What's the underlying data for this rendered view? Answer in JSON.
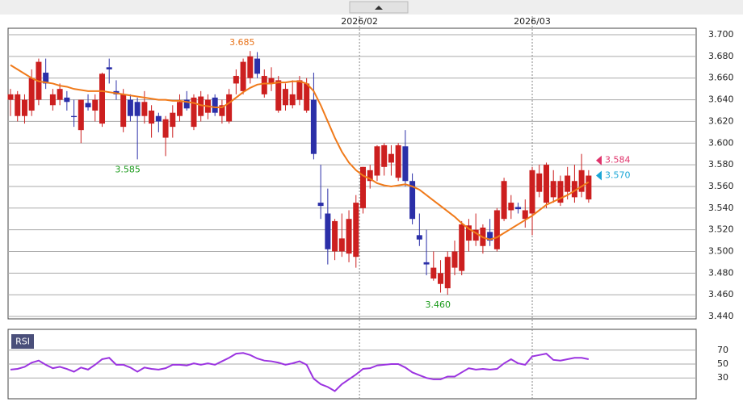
{
  "chart_data": [
    {
      "type": "candlestick",
      "up_color": "#cc1f1f",
      "down_color": "#2b2fa8",
      "candles": [
        [
          3.64,
          3.65,
          3.625,
          3.645
        ],
        [
          3.625,
          3.648,
          3.62,
          3.645
        ],
        [
          3.625,
          3.645,
          3.618,
          3.64
        ],
        [
          3.63,
          3.668,
          3.625,
          3.66
        ],
        [
          3.64,
          3.678,
          3.635,
          3.675
        ],
        [
          3.665,
          3.678,
          3.65,
          3.655
        ],
        [
          3.635,
          3.65,
          3.63,
          3.645
        ],
        [
          3.64,
          3.655,
          3.635,
          3.65
        ],
        [
          3.642,
          3.648,
          3.63,
          3.638
        ],
        [
          3.625,
          3.64,
          3.615,
          3.624
        ],
        [
          3.612,
          3.64,
          3.6,
          3.64
        ],
        [
          3.637,
          3.645,
          3.63,
          3.633
        ],
        [
          3.63,
          3.645,
          3.62,
          3.64
        ],
        [
          3.618,
          3.665,
          3.615,
          3.664
        ],
        [
          3.67,
          3.678,
          3.655,
          3.668
        ],
        [
          3.648,
          3.658,
          3.64,
          3.645
        ],
        [
          3.615,
          3.65,
          3.61,
          3.645
        ],
        [
          3.64,
          3.645,
          3.62,
          3.625
        ],
        [
          3.638,
          3.642,
          3.585,
          3.625
        ],
        [
          3.625,
          3.648,
          3.618,
          3.638
        ],
        [
          3.618,
          3.635,
          3.605,
          3.63
        ],
        [
          3.625,
          3.628,
          3.61,
          3.62
        ],
        [
          3.605,
          3.625,
          3.588,
          3.622
        ],
        [
          3.615,
          3.635,
          3.605,
          3.628
        ],
        [
          3.625,
          3.645,
          3.62,
          3.638
        ],
        [
          3.64,
          3.648,
          3.63,
          3.632
        ],
        [
          3.615,
          3.645,
          3.612,
          3.642
        ],
        [
          3.625,
          3.648,
          3.62,
          3.643
        ],
        [
          3.628,
          3.645,
          3.622,
          3.64
        ],
        [
          3.642,
          3.645,
          3.625,
          3.628
        ],
        [
          3.625,
          3.64,
          3.618,
          3.635
        ],
        [
          3.62,
          3.65,
          3.618,
          3.645
        ],
        [
          3.655,
          3.668,
          3.645,
          3.662
        ],
        [
          3.648,
          3.678,
          3.645,
          3.675
        ],
        [
          3.66,
          3.685,
          3.655,
          3.68
        ],
        [
          3.678,
          3.684,
          3.66,
          3.664
        ],
        [
          3.645,
          3.668,
          3.642,
          3.662
        ],
        [
          3.655,
          3.67,
          3.648,
          3.66
        ],
        [
          3.63,
          3.662,
          3.628,
          3.658
        ],
        [
          3.635,
          3.655,
          3.63,
          3.65
        ],
        [
          3.635,
          3.658,
          3.632,
          3.645
        ],
        [
          3.64,
          3.662,
          3.635,
          3.658
        ],
        [
          3.63,
          3.66,
          3.628,
          3.655
        ],
        [
          3.64,
          3.665,
          3.585,
          3.59
        ],
        [
          3.545,
          3.58,
          3.53,
          3.542
        ],
        [
          3.535,
          3.558,
          3.488,
          3.502
        ],
        [
          3.5,
          3.53,
          3.492,
          3.528
        ],
        [
          3.5,
          3.535,
          3.495,
          3.512
        ],
        [
          3.498,
          3.538,
          3.49,
          3.53
        ],
        [
          3.495,
          3.552,
          3.485,
          3.545
        ],
        [
          3.54,
          3.578,
          3.535,
          3.578
        ],
        [
          3.565,
          3.58,
          3.558,
          3.575
        ],
        [
          3.57,
          3.598,
          3.565,
          3.597
        ],
        [
          3.578,
          3.6,
          3.57,
          3.598
        ],
        [
          3.582,
          3.598,
          3.57,
          3.59
        ],
        [
          3.568,
          3.6,
          3.565,
          3.598
        ],
        [
          3.597,
          3.612,
          3.56,
          3.565
        ],
        [
          3.565,
          3.572,
          3.525,
          3.53
        ],
        [
          3.515,
          3.535,
          3.505,
          3.511
        ],
        [
          3.49,
          3.52,
          3.478,
          3.488
        ],
        [
          3.475,
          3.5,
          3.473,
          3.485
        ],
        [
          3.47,
          3.492,
          3.462,
          3.48
        ],
        [
          3.466,
          3.5,
          3.46,
          3.495
        ],
        [
          3.485,
          3.51,
          3.478,
          3.5
        ],
        [
          3.482,
          3.528,
          3.478,
          3.525
        ],
        [
          3.51,
          3.53,
          3.5,
          3.524
        ],
        [
          3.51,
          3.535,
          3.505,
          3.52
        ],
        [
          3.505,
          3.525,
          3.498,
          3.522
        ],
        [
          3.518,
          3.53,
          3.505,
          3.51
        ],
        [
          3.502,
          3.54,
          3.5,
          3.538
        ],
        [
          3.53,
          3.568,
          3.528,
          3.565
        ],
        [
          3.538,
          3.552,
          3.53,
          3.545
        ],
        [
          3.541,
          3.545,
          3.535,
          3.539
        ],
        [
          3.53,
          3.548,
          3.522,
          3.538
        ],
        [
          3.535,
          3.578,
          3.515,
          3.575
        ],
        [
          3.555,
          3.58,
          3.55,
          3.572
        ],
        [
          3.545,
          3.582,
          3.54,
          3.58
        ],
        [
          3.55,
          3.575,
          3.545,
          3.565
        ],
        [
          3.545,
          3.57,
          3.542,
          3.565
        ],
        [
          3.555,
          3.578,
          3.548,
          3.57
        ],
        [
          3.55,
          3.58,
          3.545,
          3.565
        ],
        [
          3.555,
          3.59,
          3.55,
          3.575
        ],
        [
          3.548,
          3.575,
          3.545,
          3.57
        ]
      ],
      "series": [
        {
          "color": "#f07a1a",
          "values": [
            3.672,
            3.668,
            3.664,
            3.66,
            3.657,
            3.656,
            3.655,
            3.653,
            3.652,
            3.65,
            3.649,
            3.648,
            3.648,
            3.648,
            3.647,
            3.646,
            3.645,
            3.644,
            3.643,
            3.642,
            3.641,
            3.64,
            3.64,
            3.639,
            3.639,
            3.638,
            3.637,
            3.635,
            3.634,
            3.633,
            3.633,
            3.637,
            3.642,
            3.647,
            3.651,
            3.654,
            3.655,
            3.655,
            3.656,
            3.656,
            3.657,
            3.657,
            3.655,
            3.648,
            3.635,
            3.62,
            3.605,
            3.592,
            3.582,
            3.575,
            3.57,
            3.567,
            3.563,
            3.561,
            3.56,
            3.561,
            3.562,
            3.56,
            3.557,
            3.552,
            3.547,
            3.542,
            3.537,
            3.532,
            3.526,
            3.521,
            3.517,
            3.513,
            3.511,
            3.513,
            3.517,
            3.521,
            3.525,
            3.529,
            3.533,
            3.538,
            3.543,
            3.546,
            3.549,
            3.552,
            3.556,
            3.56,
            3.564
          ]
        }
      ],
      "high_labels": [
        {
          "value": 3.685,
          "label": "3.685",
          "color": "#e8731a"
        }
      ],
      "low_labels": [
        {
          "value": 3.585,
          "label": "3.585",
          "color": "#1a9a1a"
        },
        {
          "value": 3.46,
          "label": "3.460",
          "color": "#1a9a1a"
        }
      ],
      "price_markers": [
        {
          "value": 3.584,
          "label": "3.584",
          "color": "#e0336b"
        },
        {
          "value": 3.57,
          "label": "3.570",
          "color": "#1aa6d6"
        }
      ],
      "ylim": [
        3.44,
        3.706
      ],
      "yticks": [
        {
          "value": 3.7,
          "label": "3.700"
        },
        {
          "value": 3.68,
          "label": "3.680"
        },
        {
          "value": 3.66,
          "label": "3.660"
        },
        {
          "value": 3.64,
          "label": "3.640"
        },
        {
          "value": 3.62,
          "label": "3.620"
        },
        {
          "value": 3.6,
          "label": "3.600"
        },
        {
          "value": 3.58,
          "label": "3.580"
        },
        {
          "value": 3.56,
          "label": "3.560"
        },
        {
          "value": 3.54,
          "label": "3.540"
        },
        {
          "value": 3.52,
          "label": "3.520"
        },
        {
          "value": 3.5,
          "label": "3.500"
        },
        {
          "value": 3.48,
          "label": "3.480"
        },
        {
          "value": 3.46,
          "label": "3.460"
        },
        {
          "value": 3.44,
          "label": "3.440"
        }
      ],
      "xticks": [
        {
          "value": 49.5,
          "label": "2026/02"
        },
        {
          "value": 74,
          "label": "2026/03"
        }
      ],
      "grid": true
    },
    {
      "type": "line",
      "title": "RSI",
      "color": "#9b34e0",
      "values": [
        42,
        43,
        46,
        52,
        55,
        49,
        44,
        46,
        43,
        39,
        45,
        42,
        49,
        57,
        59,
        49,
        49,
        45,
        39,
        45,
        43,
        42,
        44,
        49,
        49,
        48,
        51,
        49,
        51,
        49,
        54,
        59,
        65,
        66,
        63,
        58,
        55,
        54,
        52,
        49,
        51,
        54,
        49,
        29,
        21,
        17,
        11,
        21,
        28,
        35,
        43,
        44,
        48,
        49,
        50,
        50,
        45,
        38,
        34,
        30,
        28,
        28,
        32,
        32,
        38,
        44,
        42,
        43,
        42,
        43,
        51,
        57,
        51,
        49,
        61,
        63,
        65,
        56,
        55,
        57,
        59,
        59,
        57
      ],
      "ylim": [
        0,
        100
      ],
      "yticks": [
        70,
        50,
        30
      ],
      "grid": true
    }
  ]
}
